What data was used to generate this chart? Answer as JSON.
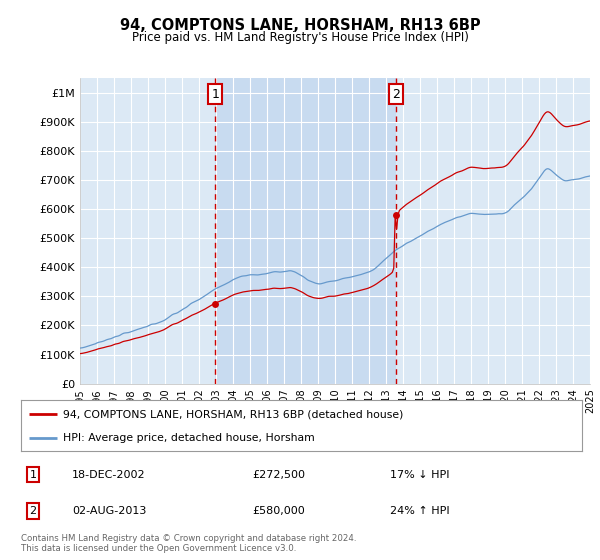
{
  "title": "94, COMPTONS LANE, HORSHAM, RH13 6BP",
  "subtitle": "Price paid vs. HM Land Registry's House Price Index (HPI)",
  "ylim": [
    0,
    1050000
  ],
  "yticks": [
    0,
    100000,
    200000,
    300000,
    400000,
    500000,
    600000,
    700000,
    800000,
    900000,
    1000000
  ],
  "ytick_labels": [
    "£0",
    "£100K",
    "£200K",
    "£300K",
    "£400K",
    "£500K",
    "£600K",
    "£700K",
    "£800K",
    "£900K",
    "£1M"
  ],
  "plot_bg_color": "#dce9f5",
  "highlight_bg_color": "#c8dbf0",
  "sale1_date": 2002.96,
  "sale1_price": 272500,
  "sale2_date": 2013.58,
  "sale2_price": 580000,
  "legend_line1": "94, COMPTONS LANE, HORSHAM, RH13 6BP (detached house)",
  "legend_line2": "HPI: Average price, detached house, Horsham",
  "annotation1_date": "18-DEC-2002",
  "annotation1_price": "£272,500",
  "annotation1_hpi": "17% ↓ HPI",
  "annotation2_date": "02-AUG-2013",
  "annotation2_price": "£580,000",
  "annotation2_hpi": "24% ↑ HPI",
  "footer": "Contains HM Land Registry data © Crown copyright and database right 2024.\nThis data is licensed under the Open Government Licence v3.0.",
  "line_color_sale": "#cc0000",
  "line_color_hpi": "#6699cc",
  "vline_color": "#cc0000",
  "box_color": "#cc0000",
  "xmin": 1995,
  "xmax": 2025
}
